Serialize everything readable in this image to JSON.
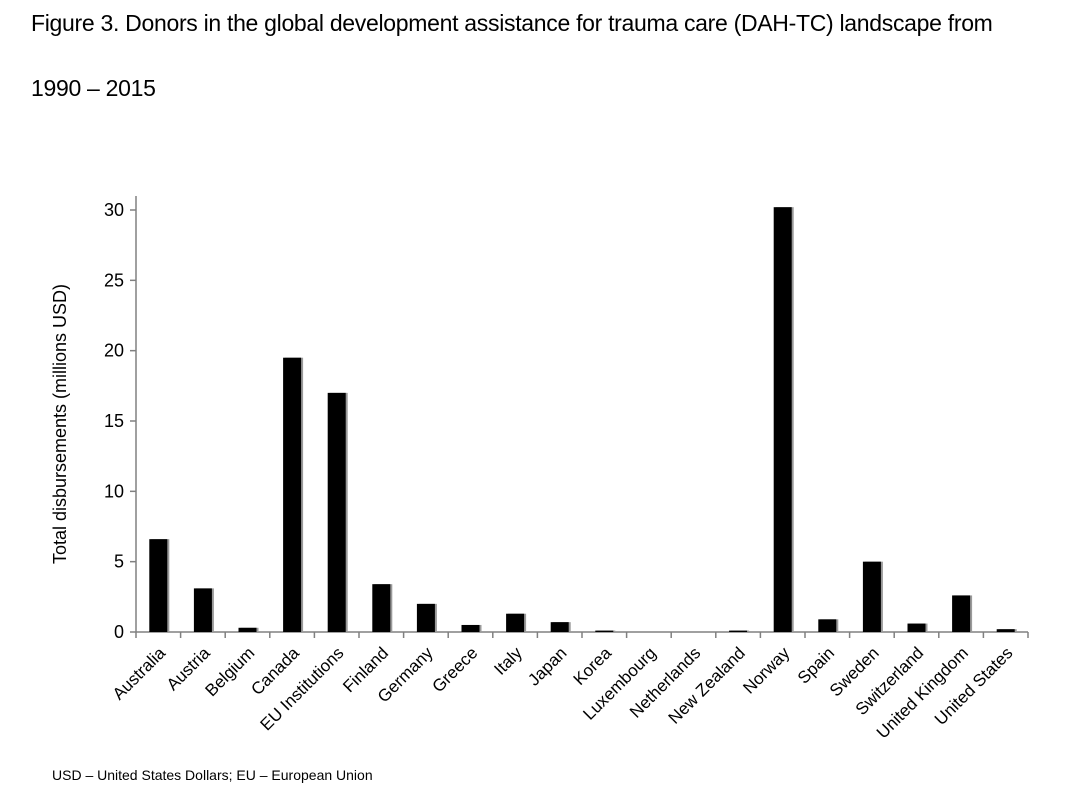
{
  "figure": {
    "title_line1": "Figure 3. Donors in the global development assistance for trauma care (DAH-TC) landscape from",
    "title_line2": "1990 – 2015",
    "footnote": "USD – United States Dollars; EU – European Union"
  },
  "colors": {
    "bar": "#000000",
    "bar_shadow": "#9a9a9a",
    "axis": "#808080",
    "text": "#000000"
  },
  "chart_data": {
    "type": "bar",
    "title": "Donors in the global development assistance for trauma care (DAH-TC) landscape from 1990 – 2015",
    "xlabel": "",
    "ylabel": "Total disbursements (millions USD)",
    "ylim": [
      0,
      31
    ],
    "yticks": [
      0,
      5,
      10,
      15,
      20,
      25,
      30
    ],
    "grid": false,
    "categories": [
      "Australia",
      "Austria",
      "Belgium",
      "Canada",
      "EU Institutions",
      "Finland",
      "Germany",
      "Greece",
      "Italy",
      "Japan",
      "Korea",
      "Luxembourg",
      "Netherlands",
      "New Zealand",
      "Norway",
      "Spain",
      "Sweden",
      "Switzerland",
      "United Kingdom",
      "United States"
    ],
    "values": [
      6.6,
      3.1,
      0.3,
      19.5,
      17.0,
      3.4,
      2.0,
      0.5,
      1.3,
      0.7,
      0.1,
      0.0,
      0.0,
      0.1,
      30.2,
      0.9,
      5.0,
      0.6,
      2.6,
      0.2
    ]
  }
}
